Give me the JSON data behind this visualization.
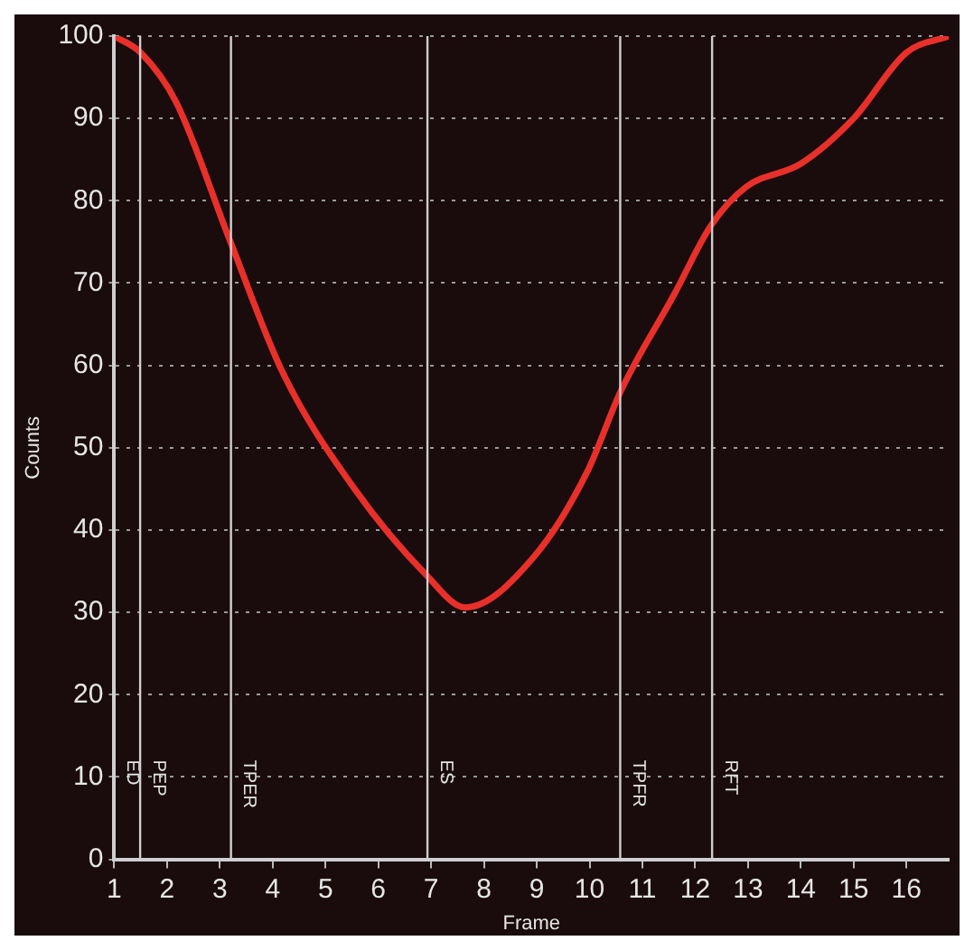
{
  "chart_data": {
    "type": "line",
    "xlabel": "Frame",
    "ylabel": "Counts",
    "x": [
      1,
      1.5,
      2.17,
      3.2,
      4.2,
      5.55,
      6.9,
      7.65,
      8.94,
      9.95,
      10.6,
      11.6,
      12.3,
      12.97,
      14,
      15,
      16,
      16.8
    ],
    "series": [
      {
        "color": "#e8302a",
        "values": [
          100,
          98,
          92,
          75,
          59,
          45,
          34.6,
          30.6,
          36.7,
          47,
          57,
          68.6,
          77,
          81.7,
          84.5,
          90,
          98,
          100
        ]
      }
    ],
    "xlim": [
      1,
      16.8
    ],
    "xticks": [
      1,
      2,
      3,
      4,
      5,
      6,
      7,
      8,
      9,
      10,
      11,
      12,
      13,
      14,
      15,
      16
    ],
    "ylim": [
      0,
      100
    ],
    "yticks": [
      0,
      10,
      20,
      30,
      40,
      50,
      60,
      70,
      80,
      90,
      100
    ],
    "grid": "y",
    "legend": false,
    "marker": "none",
    "line_style": "solid",
    "ref_lines": [
      {
        "axis": "x",
        "value": 1,
        "label": "ED"
      },
      {
        "axis": "x",
        "value": 1.49,
        "label": "PEP"
      },
      {
        "axis": "x",
        "value": 3.21,
        "label": "TPER"
      },
      {
        "axis": "x",
        "value": 6.93,
        "label": "ES"
      },
      {
        "axis": "x",
        "value": 10.58,
        "label": "TPFR"
      },
      {
        "axis": "x",
        "value": 12.32,
        "label": "RFT"
      }
    ]
  }
}
